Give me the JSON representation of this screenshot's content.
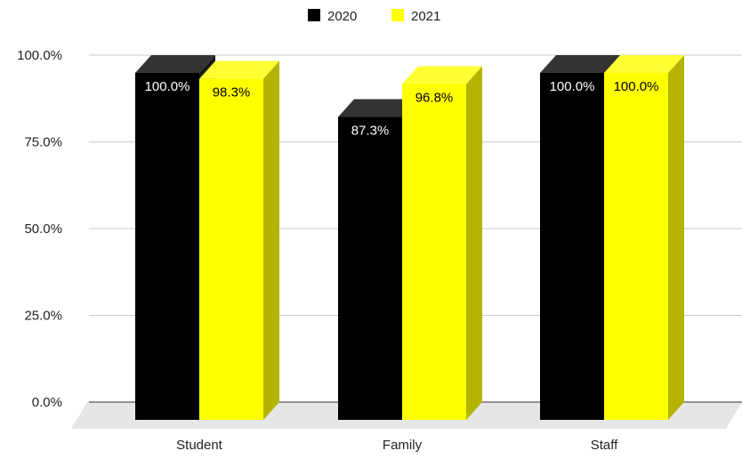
{
  "chart_data": {
    "type": "bar",
    "style": "3d-clustered-column",
    "title": "",
    "xlabel": "",
    "ylabel": "",
    "categories": [
      "Student",
      "Family",
      "Staff"
    ],
    "series": [
      {
        "name": "2020",
        "values": [
          100.0,
          87.3,
          100.0
        ],
        "labels": [
          "100.0%",
          "87.3%",
          "100.0%"
        ],
        "color": "#000000",
        "top_color": "#333333",
        "side_color": "#1a1a1a",
        "label_color": "#ffffff"
      },
      {
        "name": "2021",
        "values": [
          98.3,
          96.8,
          100.0
        ],
        "labels": [
          "98.3%",
          "96.8%",
          "100.0%"
        ],
        "color": "#ffff00",
        "top_color": "#ffff33",
        "side_color": "#b3b300",
        "label_color": "#000000"
      }
    ],
    "ylim": [
      0,
      100
    ],
    "yticks": [
      0,
      25,
      50,
      75,
      100
    ],
    "ytick_labels": [
      "0.0%",
      "25.0%",
      "50.0%",
      "75.0%",
      "100.0%"
    ],
    "grid": true,
    "legend": "top-center"
  }
}
